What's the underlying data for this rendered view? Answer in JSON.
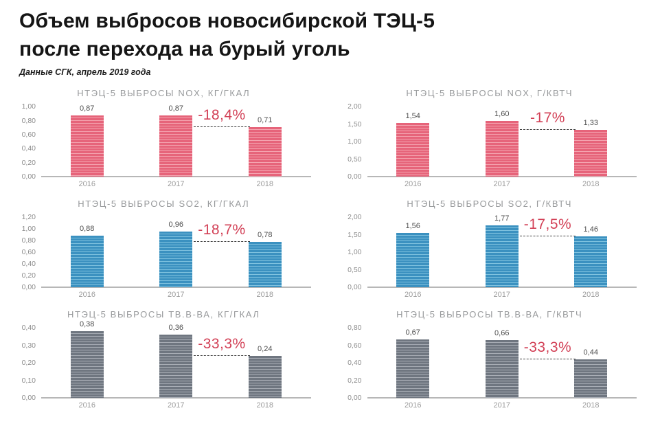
{
  "page": {
    "title": "Объем выбросов новосибирской ТЭЦ-5 после перехода на бурый уголь",
    "subtitle": "Данные СГК, апрель 2019 года"
  },
  "colors": {
    "headline_text": "#151515",
    "chart_title_text": "#97999b",
    "tick_text": "#8c8c8c",
    "value_text": "#4d4d4d",
    "year_text": "#9b9b9b",
    "axis_line": "#b7b7b7",
    "annotation_red": "#d23f55",
    "dashed_line": "#3f3f3f"
  },
  "chart_data": [
    {
      "type": "bar",
      "title": "НТЭЦ-5 ВЫБРОСЫ NOX, КГ/ГКАЛ",
      "categories": [
        "2016",
        "2017",
        "2018"
      ],
      "values": [
        0.87,
        0.87,
        0.71
      ],
      "value_labels": [
        "0,87",
        "0,87",
        "0,71"
      ],
      "annotation": "-18,4%",
      "annotation_between": [
        "2017",
        "2018"
      ],
      "ylim": [
        0,
        1.0
      ],
      "yticks": [
        "1,00",
        "0,80",
        "0,60",
        "0,40",
        "0,20",
        "0,00"
      ],
      "grid": false,
      "legend": "none",
      "bar_base": "#e6647a",
      "bar_stripe": "#f4a4b0"
    },
    {
      "type": "bar",
      "title": "НТЭЦ-5 ВЫБРОСЫ NOX, Г/КВТЧ",
      "categories": [
        "2016",
        "2017",
        "2018"
      ],
      "values": [
        1.54,
        1.6,
        1.33
      ],
      "value_labels": [
        "1,54",
        "1,60",
        "1,33"
      ],
      "annotation": "-17%",
      "annotation_between": [
        "2017",
        "2018"
      ],
      "ylim": [
        0,
        2.0
      ],
      "yticks": [
        "2,00",
        "1,50",
        "1,00",
        "0,50",
        "0,00"
      ],
      "grid": false,
      "legend": "none",
      "bar_base": "#e6647a",
      "bar_stripe": "#f4a4b0"
    },
    {
      "type": "bar",
      "title": "НТЭЦ-5 ВЫБРОСЫ SO2, КГ/ГКАЛ",
      "categories": [
        "2016",
        "2017",
        "2018"
      ],
      "values": [
        0.88,
        0.96,
        0.78
      ],
      "value_labels": [
        "0,88",
        "0,96",
        "0,78"
      ],
      "annotation": "-18,7%",
      "annotation_between": [
        "2017",
        "2018"
      ],
      "ylim": [
        0,
        1.2
      ],
      "yticks": [
        "1,20",
        "1,00",
        "0,80",
        "0,60",
        "0,40",
        "0,20",
        "0,00"
      ],
      "grid": false,
      "legend": "none",
      "bar_base": "#3b91c0",
      "bar_stripe": "#7fc2df"
    },
    {
      "type": "bar",
      "title": "НТЭЦ-5 ВЫБРОСЫ SO2, Г/КВТЧ",
      "categories": [
        "2016",
        "2017",
        "2018"
      ],
      "values": [
        1.56,
        1.77,
        1.46
      ],
      "value_labels": [
        "1,56",
        "1,77",
        "1,46"
      ],
      "annotation": "-17,5%",
      "annotation_between": [
        "2017",
        "2018"
      ],
      "ylim": [
        0,
        2.0
      ],
      "yticks": [
        "2,00",
        "1,50",
        "1,00",
        "0,50",
        "0,00"
      ],
      "grid": false,
      "legend": "none",
      "bar_base": "#3b91c0",
      "bar_stripe": "#7fc2df"
    },
    {
      "type": "bar",
      "title": "НТЭЦ-5 ВЫБРОСЫ ТВ.В-ВА, КГ/ГКАЛ",
      "categories": [
        "2016",
        "2017",
        "2018"
      ],
      "values": [
        0.38,
        0.36,
        0.24
      ],
      "value_labels": [
        "0,38",
        "0,36",
        "0,24"
      ],
      "annotation": "-33,3%",
      "annotation_between": [
        "2017",
        "2018"
      ],
      "ylim": [
        0,
        0.4
      ],
      "yticks": [
        "0,40",
        "0,30",
        "0,20",
        "0,10",
        "0,00"
      ],
      "grid": false,
      "legend": "none",
      "bar_base": "#6f7680",
      "bar_stripe": "#a8adb5"
    },
    {
      "type": "bar",
      "title": "НТЭЦ-5 ВЫБРОСЫ ТВ.В-ВА, Г/КВТЧ",
      "categories": [
        "2016",
        "2017",
        "2018"
      ],
      "values": [
        0.67,
        0.66,
        0.44
      ],
      "value_labels": [
        "0,67",
        "0,66",
        "0,44"
      ],
      "annotation": "-33,3%",
      "annotation_between": [
        "2017",
        "2018"
      ],
      "ylim": [
        0,
        0.8
      ],
      "yticks": [
        "0,80",
        "0,60",
        "0,40",
        "0,20",
        "0,00"
      ],
      "grid": false,
      "legend": "none",
      "bar_base": "#6f7680",
      "bar_stripe": "#a8adb5"
    }
  ]
}
